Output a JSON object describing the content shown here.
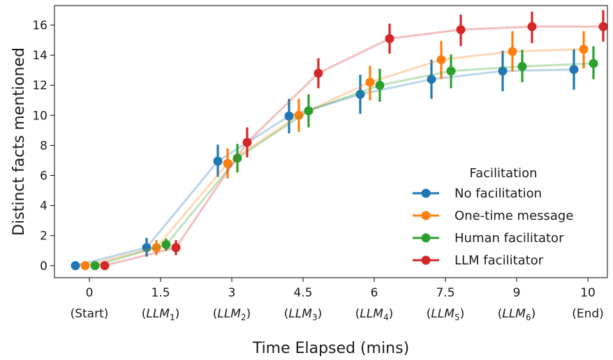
{
  "chart_data": {
    "type": "line",
    "title": "",
    "xlabel": "Time Elapsed (mins)",
    "ylabel": "Distinct facts mentioned",
    "ylim": [
      -0.8,
      17.3
    ],
    "yticks": [
      0,
      2,
      4,
      6,
      8,
      10,
      12,
      14,
      16
    ],
    "grid": false,
    "categories": [
      {
        "top": "0",
        "bottom": "(Start)",
        "sub": ""
      },
      {
        "top": "1.5",
        "bottom": "LLM",
        "sub": "1"
      },
      {
        "top": "3",
        "bottom": "LLM",
        "sub": "2"
      },
      {
        "top": "4.5",
        "bottom": "LLM",
        "sub": "3"
      },
      {
        "top": "6",
        "bottom": "LLM",
        "sub": "4"
      },
      {
        "top": "7.5",
        "bottom": "LLM",
        "sub": "5"
      },
      {
        "top": "9",
        "bottom": "LLM",
        "sub": "6"
      },
      {
        "top": "10",
        "bottom": "(End)",
        "sub": ""
      }
    ],
    "legend": {
      "title": "Facilitation",
      "position": "lower-right"
    },
    "series": [
      {
        "name": "No facilitation",
        "color": "#1f77b4",
        "values": [
          0,
          1.2,
          6.95,
          9.95,
          11.4,
          12.4,
          12.95,
          13.05
        ],
        "lower": [
          0,
          0.6,
          5.9,
          8.8,
          10.1,
          11.1,
          11.6,
          11.7
        ],
        "upper": [
          0,
          1.85,
          8.05,
          11.1,
          12.7,
          13.7,
          14.3,
          14.4
        ]
      },
      {
        "name": "One-time message",
        "color": "#ff7f0e",
        "values": [
          0,
          1.2,
          6.8,
          10.0,
          12.2,
          13.7,
          14.25,
          14.4
        ],
        "lower": [
          0,
          0.7,
          5.8,
          8.9,
          11.0,
          12.4,
          12.9,
          13.1
        ],
        "upper": [
          0,
          1.7,
          7.8,
          11.1,
          13.3,
          14.95,
          15.6,
          15.6
        ]
      },
      {
        "name": "Human facilitator",
        "color": "#2ca02c",
        "values": [
          0,
          1.4,
          7.15,
          10.3,
          12.0,
          12.95,
          13.25,
          13.45
        ],
        "lower": [
          0,
          1.0,
          6.2,
          9.2,
          10.9,
          11.8,
          12.2,
          12.4
        ],
        "upper": [
          0,
          1.8,
          8.1,
          11.4,
          13.1,
          14.05,
          14.35,
          14.6
        ]
      },
      {
        "name": "LLM facilitator",
        "color": "#d62728",
        "values": [
          0,
          1.2,
          8.2,
          12.8,
          15.1,
          15.7,
          15.9,
          15.9
        ],
        "lower": [
          0,
          0.7,
          7.2,
          11.8,
          14.1,
          14.6,
          14.8,
          14.9
        ],
        "upper": [
          0,
          1.7,
          9.2,
          13.8,
          16.1,
          16.7,
          16.9,
          17.0
        ]
      }
    ]
  }
}
